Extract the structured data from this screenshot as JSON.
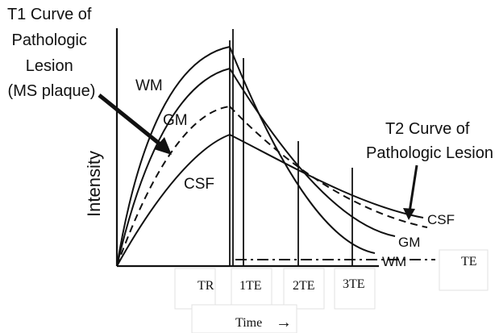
{
  "figure": {
    "t1_title": [
      "T1 Curve of",
      "Pathologic",
      "Lesion",
      "(MS plaque)"
    ],
    "t2_title": [
      "T2 Curve of",
      "Pathologic Lesion"
    ],
    "y_label": "Intensity",
    "x_label": "Time",
    "x_arrow": "→",
    "tick_labels": [
      "TR",
      "1TE",
      "2TE",
      "3TE"
    ],
    "te_label": "TE",
    "growth_labels": [
      "WM",
      "GM",
      "CSF"
    ],
    "decay_labels": [
      "CSF",
      "GM",
      "WM"
    ]
  }
}
